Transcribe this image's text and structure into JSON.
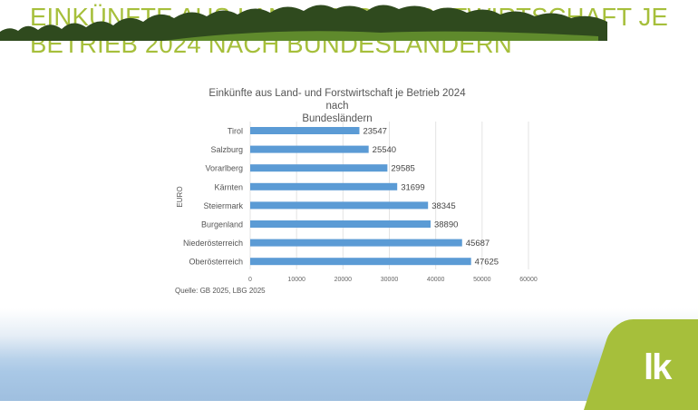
{
  "header": {
    "line1": "EINKÜNFTE AUS LAND- UND FORSTWIRTSCHAFT JE",
    "line2": "BETRIEB 2024 NACH BUNDESLÄNDERN"
  },
  "logo": {
    "text": "lk"
  },
  "colors": {
    "accent": "#a6bf3b",
    "bar": "#5b9bd5"
  },
  "chart_data": {
    "type": "bar",
    "orientation": "horizontal",
    "title_line1": "Einkünfte aus Land- und Forstwirtschaft je Betrieb 2024 nach",
    "title_line2": "Bundesländern",
    "ylabel": "EURO",
    "xlabel": "",
    "categories": [
      "Tirol",
      "Salzburg",
      "Vorarlberg",
      "Kärnten",
      "Steiermark",
      "Burgenland",
      "Niederösterreich",
      "Oberösterreich"
    ],
    "values": [
      23547,
      25540,
      29585,
      31699,
      38345,
      38890,
      45687,
      47625
    ],
    "xlim": [
      0,
      60000
    ],
    "xticks": [
      "0",
      "10000",
      "20000",
      "30000",
      "40000",
      "50000",
      "60000"
    ],
    "grid": true,
    "source": "Quelle: GB 2025, LBG 2025"
  }
}
